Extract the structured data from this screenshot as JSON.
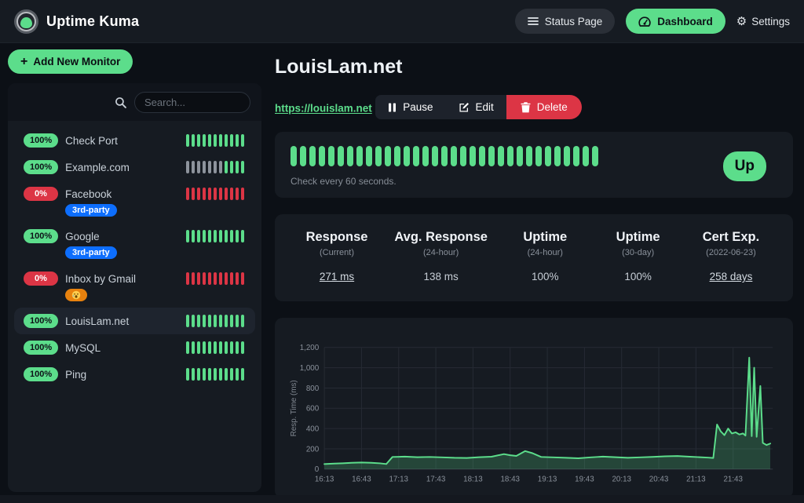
{
  "colors": {
    "accent_green": "#5cdd8b",
    "danger_red": "#dc3545",
    "info_blue": "#0d6efd",
    "warning_orange": "#e8820e",
    "pending_gray": "#8d939c"
  },
  "navbar": {
    "brand": "Uptime Kuma",
    "status_page_label": "Status Page",
    "dashboard_label": "Dashboard",
    "settings_label": "Settings"
  },
  "sidebar": {
    "add_monitor_label": "Add New Monitor",
    "search_placeholder": "Search...",
    "monitors": [
      {
        "name": "Check Port",
        "uptime": "100%",
        "status": "up",
        "selected": false,
        "beats": [
          "up",
          "up",
          "up",
          "up",
          "up",
          "up",
          "up",
          "up",
          "up",
          "up",
          "up"
        ]
      },
      {
        "name": "Example.com",
        "uptime": "100%",
        "status": "up",
        "selected": false,
        "beats": [
          "pending",
          "pending",
          "pending",
          "pending",
          "pending",
          "pending",
          "pending",
          "up",
          "up",
          "up",
          "up"
        ]
      },
      {
        "name": "Facebook",
        "uptime": "0%",
        "status": "down",
        "selected": false,
        "tag": "3rd-party",
        "beats": [
          "down",
          "down",
          "down",
          "down",
          "down",
          "down",
          "down",
          "down",
          "down",
          "down",
          "down"
        ]
      },
      {
        "name": "Google",
        "uptime": "100%",
        "status": "up",
        "selected": false,
        "tag": "3rd-party",
        "beats": [
          "up",
          "up",
          "up",
          "up",
          "up",
          "up",
          "up",
          "up",
          "up",
          "up",
          "up"
        ]
      },
      {
        "name": "Inbox by Gmail",
        "uptime": "0%",
        "status": "down",
        "selected": false,
        "emoji_tag": "crying-face",
        "beats": [
          "down",
          "down",
          "down",
          "down",
          "down",
          "down",
          "down",
          "down",
          "down",
          "down",
          "down"
        ]
      },
      {
        "name": "LouisLam.net",
        "uptime": "100%",
        "status": "up",
        "selected": true,
        "beats": [
          "up",
          "up",
          "up",
          "up",
          "up",
          "up",
          "up",
          "up",
          "up",
          "up",
          "up"
        ]
      },
      {
        "name": "MySQL",
        "uptime": "100%",
        "status": "up",
        "selected": false,
        "beats": [
          "up",
          "up",
          "up",
          "up",
          "up",
          "up",
          "up",
          "up",
          "up",
          "up",
          "up"
        ]
      },
      {
        "name": "Ping",
        "uptime": "100%",
        "status": "up",
        "selected": false,
        "beats": [
          "up",
          "up",
          "up",
          "up",
          "up",
          "up",
          "up",
          "up",
          "up",
          "up",
          "up"
        ]
      }
    ]
  },
  "detail": {
    "title": "LouisLam.net",
    "url": "https://louislam.net",
    "actions": {
      "pause": "Pause",
      "edit": "Edit",
      "delete": "Delete"
    },
    "status_badge": "Up",
    "beat_count": 33,
    "beat_status": "up",
    "check_text": "Check every 60 seconds.",
    "stats": [
      {
        "title": "Response",
        "subtitle": "(Current)",
        "value": "271 ms",
        "link": true
      },
      {
        "title": "Avg. Response",
        "subtitle": "(24-hour)",
        "value": "138 ms",
        "link": false
      },
      {
        "title": "Uptime",
        "subtitle": "(24-hour)",
        "value": "100%",
        "link": false
      },
      {
        "title": "Uptime",
        "subtitle": "(30-day)",
        "value": "100%",
        "link": false
      },
      {
        "title": "Cert Exp.",
        "subtitle": "(2022-06-23)",
        "value": "258 days",
        "link": true
      }
    ]
  },
  "chart_data": {
    "type": "area",
    "series_name": "Response Time",
    "ylabel": "Resp. Time (ms)",
    "ylim": [
      0,
      1200
    ],
    "yticks": [
      0,
      200,
      400,
      600,
      800,
      1000,
      1200
    ],
    "ytick_labels": [
      "0",
      "200",
      "400",
      "600",
      "800",
      "1,000",
      "1,200"
    ],
    "xtick_labels": [
      "16:13",
      "16:43",
      "17:13",
      "17:43",
      "18:13",
      "18:43",
      "19:13",
      "19:43",
      "20:13",
      "20:43",
      "21:13",
      "21:43"
    ],
    "xtick_minutes": [
      0,
      30,
      60,
      90,
      120,
      150,
      180,
      210,
      240,
      270,
      300,
      330
    ],
    "x_max_minutes": 362,
    "grid": true,
    "legend_position": "none",
    "points": [
      [
        0,
        50
      ],
      [
        8,
        55
      ],
      [
        15,
        58
      ],
      [
        22,
        62
      ],
      [
        30,
        65
      ],
      [
        38,
        62
      ],
      [
        45,
        57
      ],
      [
        50,
        50
      ],
      [
        55,
        120
      ],
      [
        65,
        123
      ],
      [
        75,
        118
      ],
      [
        85,
        120
      ],
      [
        95,
        116
      ],
      [
        105,
        112
      ],
      [
        115,
        110
      ],
      [
        125,
        118
      ],
      [
        135,
        122
      ],
      [
        145,
        148
      ],
      [
        150,
        137
      ],
      [
        155,
        130
      ],
      [
        162,
        178
      ],
      [
        168,
        157
      ],
      [
        175,
        120
      ],
      [
        185,
        116
      ],
      [
        195,
        112
      ],
      [
        205,
        107
      ],
      [
        215,
        116
      ],
      [
        225,
        123
      ],
      [
        235,
        118
      ],
      [
        245,
        112
      ],
      [
        255,
        116
      ],
      [
        265,
        121
      ],
      [
        275,
        126
      ],
      [
        285,
        129
      ],
      [
        295,
        122
      ],
      [
        303,
        118
      ],
      [
        310,
        113
      ],
      [
        314,
        110
      ],
      [
        317,
        440
      ],
      [
        320,
        372
      ],
      [
        323,
        335
      ],
      [
        326,
        400
      ],
      [
        329,
        352
      ],
      [
        332,
        363
      ],
      [
        335,
        342
      ],
      [
        338,
        352
      ],
      [
        340,
        330
      ],
      [
        343,
        1100
      ],
      [
        345,
        325
      ],
      [
        347,
        1000
      ],
      [
        349,
        318
      ],
      [
        352,
        820
      ],
      [
        354,
        258
      ],
      [
        357,
        238
      ],
      [
        360,
        252
      ]
    ]
  }
}
